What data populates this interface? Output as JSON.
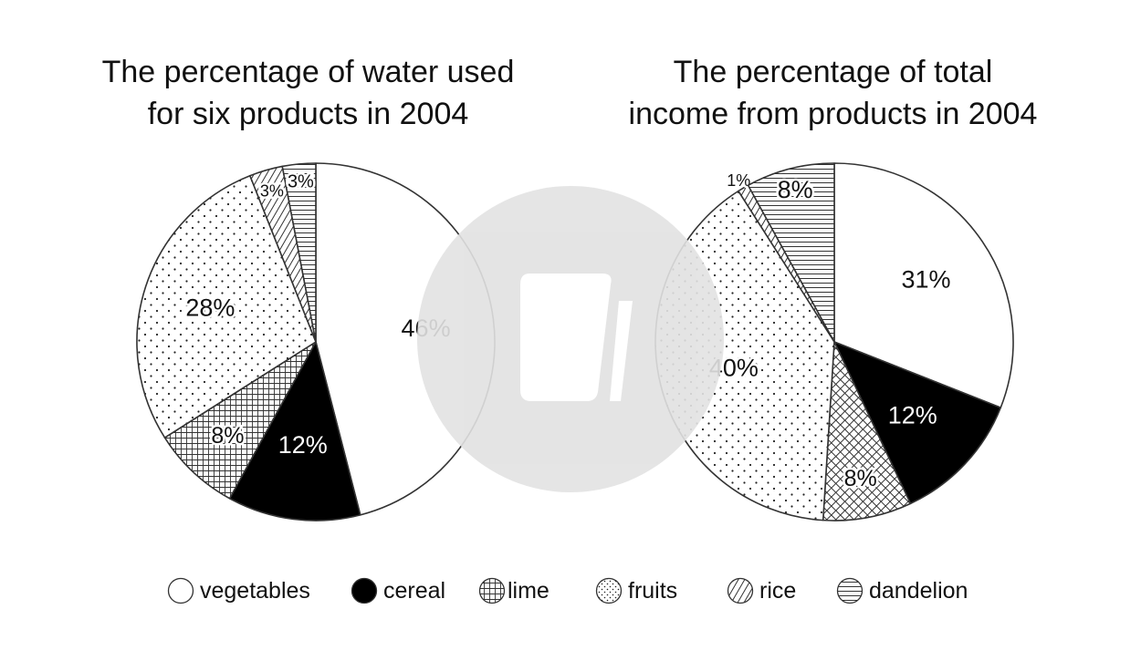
{
  "colors": {
    "stroke": "#333333",
    "cereal": "#000000",
    "watermark": "#e6e6e6"
  },
  "chart_data": [
    {
      "type": "pie",
      "title": "The percentage of water used\nfor six products in 2004",
      "categories": [
        "vegetables",
        "cereal",
        "lime",
        "fruits",
        "rice",
        "dandelion"
      ],
      "values": [
        46,
        12,
        8,
        28,
        3,
        3
      ],
      "value_labels": [
        "46%",
        "12%",
        "8%",
        "28%",
        "3%",
        "3%"
      ],
      "patterns": [
        "solid-white",
        "solid-black",
        "grid",
        "dots",
        "diagonal",
        "horizontal"
      ]
    },
    {
      "type": "pie",
      "title": "The percentage of total\nincome from products in 2004",
      "categories": [
        "vegetables",
        "cereal",
        "lime",
        "fruits",
        "rice",
        "dandelion"
      ],
      "values": [
        31,
        12,
        8,
        40,
        1,
        8
      ],
      "value_labels": [
        "31%",
        "12%",
        "8%",
        "40%",
        "1%",
        "8%"
      ],
      "patterns": [
        "solid-white",
        "solid-black",
        "crosshatch",
        "dots",
        "diagonal",
        "horizontal"
      ]
    }
  ],
  "legend": {
    "placement": "bottom",
    "items": [
      {
        "label": "vegetables",
        "pattern": "solid-white"
      },
      {
        "label": "cereal",
        "pattern": "solid-black"
      },
      {
        "label": "lime",
        "pattern": "grid"
      },
      {
        "label": "fruits",
        "pattern": "dots"
      },
      {
        "label": "rice",
        "pattern": "diagonal"
      },
      {
        "label": "dandelion",
        "pattern": "horizontal"
      }
    ]
  }
}
